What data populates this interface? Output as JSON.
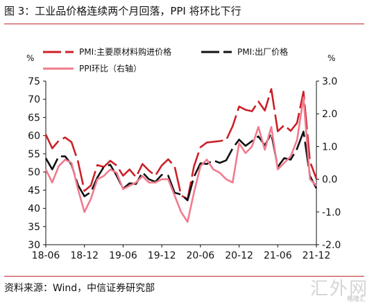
{
  "figure": {
    "title": "图 3：工业品价格连续两个月回落，PPI 将环比下行",
    "source": "资料来源：Wind，中信证券研究部",
    "watermark": "汇外网",
    "watermark_sub": "格隆汇"
  },
  "colors": {
    "raw_material": "#cc1f27",
    "pmi_output": "#111111",
    "ppi_mom": "#f07a8c",
    "rule": "#c0282d"
  },
  "chart_data": {
    "type": "line",
    "x": [
      "18-06",
      "18-07",
      "18-08",
      "18-09",
      "18-10",
      "18-11",
      "18-12",
      "19-01",
      "19-02",
      "19-03",
      "19-04",
      "19-05",
      "19-06",
      "19-07",
      "19-08",
      "19-09",
      "19-10",
      "19-11",
      "19-12",
      "20-01",
      "20-02",
      "20-03",
      "20-04",
      "20-05",
      "20-06",
      "20-07",
      "20-08",
      "20-09",
      "20-10",
      "20-11",
      "20-12",
      "21-01",
      "21-02",
      "21-03",
      "21-04",
      "21-05",
      "21-06",
      "21-07",
      "21-08",
      "21-09",
      "21-10",
      "21-11",
      "21-12"
    ],
    "x_tick_labels": [
      "18-06",
      "18-12",
      "19-06",
      "19-12",
      "20-06",
      "20-12",
      "21-06",
      "21-12"
    ],
    "y_left": {
      "unit": "%",
      "min": 30,
      "max": 75,
      "ticks": [
        30,
        35,
        40,
        45,
        50,
        55,
        60,
        65,
        70,
        75
      ]
    },
    "y_right": {
      "unit": "%",
      "min": -2.0,
      "max": 3.0,
      "ticks": [
        "-2.0",
        "-1.0",
        "0.0",
        "1.0",
        "2.0",
        "3.0"
      ]
    },
    "series": [
      {
        "name": "PMI:主要原材料购进价格",
        "axis": "left",
        "style": "dashed",
        "values": [
          60.3,
          56.5,
          58.6,
          59.5,
          58.2,
          52.9,
          44.8,
          46.3,
          51.9,
          51.4,
          53.1,
          51.8,
          49.0,
          50.7,
          48.6,
          52.2,
          50.4,
          49.0,
          51.8,
          53.5,
          51.5,
          43.6,
          42.5,
          51.6,
          56.8,
          58.1,
          58.3,
          58.5,
          58.8,
          62.6,
          68.0,
          67.1,
          66.7,
          69.4,
          66.9,
          72.8,
          61.2,
          62.9,
          61.3,
          63.5,
          72.1,
          52.9,
          48.1
        ]
      },
      {
        "name": "PMI:出厂价格",
        "axis": "left",
        "style": "dashed",
        "values": [
          53.8,
          50.7,
          54.3,
          54.3,
          52.0,
          46.4,
          43.3,
          44.5,
          48.5,
          51.4,
          52.0,
          49.0,
          45.4,
          46.9,
          46.7,
          49.9,
          48.0,
          47.3,
          49.2,
          49.0,
          44.3,
          43.8,
          42.2,
          48.7,
          52.4,
          52.2,
          53.2,
          52.5,
          53.2,
          56.5,
          58.9,
          57.2,
          58.5,
          59.8,
          57.3,
          60.6,
          51.4,
          53.8,
          53.4,
          56.4,
          61.1,
          48.9,
          45.5
        ]
      },
      {
        "name": "PPI环比（右轴）",
        "axis": "right",
        "style": "solid",
        "values": [
          0.3,
          -0.1,
          0.4,
          0.6,
          0.5,
          -0.3,
          -1.0,
          -0.6,
          0.0,
          0.1,
          0.3,
          0.2,
          -0.3,
          -0.2,
          -0.1,
          0.1,
          -0.1,
          -0.1,
          0.0,
          0.0,
          -0.5,
          -1.0,
          -1.3,
          -0.4,
          0.4,
          0.6,
          0.3,
          0.2,
          0.0,
          -0.1,
          1.1,
          0.8,
          1.0,
          1.6,
          0.9,
          1.6,
          0.3,
          0.5,
          0.7,
          1.2,
          2.5,
          0.0,
          -0.2
        ]
      }
    ],
    "legend": {
      "placement": "top",
      "entries": [
        "PMI:主要原材料购进价格",
        "PMI:出厂价格",
        "PPI环比（右轴）"
      ]
    },
    "grid": false
  }
}
